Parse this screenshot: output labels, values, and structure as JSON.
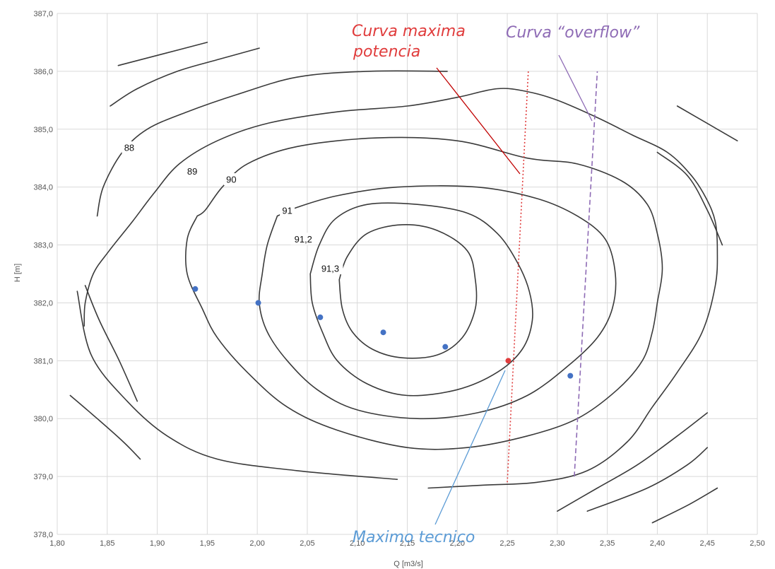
{
  "chart_data": {
    "type": "contour",
    "xlabel": "Q [m3/s]",
    "ylabel": "H [m]",
    "xlim": [
      1.8,
      2.5
    ],
    "ylim": [
      378.0,
      387.0
    ],
    "x_ticks": [
      "1,80",
      "1,85",
      "1,90",
      "1,95",
      "2,00",
      "2,05",
      "2,10",
      "2,15",
      "2,20",
      "2,25",
      "2,30",
      "2,35",
      "2,40",
      "2,45",
      "2,50"
    ],
    "y_ticks": [
      "378,0",
      "379,0",
      "380,0",
      "381,0",
      "382,0",
      "383,0",
      "384,0",
      "385,0",
      "386,0",
      "387,0"
    ],
    "grid": true,
    "contour_labels": [
      {
        "text": "88",
        "x": 1.872,
        "y": 384.68
      },
      {
        "text": "89",
        "x": 1.935,
        "y": 384.27
      },
      {
        "text": "90",
        "x": 1.974,
        "y": 384.13
      },
      {
        "text": "91",
        "x": 2.03,
        "y": 383.59
      },
      {
        "text": "91,2",
        "x": 2.046,
        "y": 383.1
      },
      {
        "text": "91,3",
        "x": 2.073,
        "y": 382.59
      }
    ],
    "operating_points": [
      {
        "x": 1.938,
        "y": 382.24,
        "color": "#4472c4"
      },
      {
        "x": 2.001,
        "y": 382.0,
        "color": "#4472c4"
      },
      {
        "x": 2.063,
        "y": 381.75,
        "color": "#4472c4"
      },
      {
        "x": 2.126,
        "y": 381.49,
        "color": "#4472c4"
      },
      {
        "x": 2.188,
        "y": 381.24,
        "color": "#4472c4"
      },
      {
        "x": 2.251,
        "y": 381.0,
        "color": "#e03c3c"
      },
      {
        "x": 2.313,
        "y": 380.74,
        "color": "#4472c4"
      }
    ],
    "reference_lines": [
      {
        "name": "Curva maxima potencia",
        "color": "#e03c3c",
        "dash": "dotted",
        "points": [
          [
            2.25,
            378.9
          ],
          [
            2.271,
            386.0
          ]
        ]
      },
      {
        "name": "Curva “overflow”",
        "color": "#8e6bb5",
        "dash": "dashed",
        "points": [
          [
            2.317,
            379.0
          ],
          [
            2.34,
            386.0
          ]
        ]
      }
    ],
    "contours": [
      {
        "level": "88",
        "points": [
          [
            1.84,
            383.5
          ],
          [
            1.846,
            384.0
          ],
          [
            1.865,
            384.6
          ],
          [
            1.89,
            385.0
          ],
          [
            1.93,
            385.3
          ],
          [
            1.98,
            385.6
          ],
          [
            2.04,
            385.9
          ],
          [
            2.11,
            386.0
          ],
          [
            2.19,
            386.0
          ]
        ]
      },
      {
        "level": "89",
        "points": [
          [
            1.82,
            382.2
          ],
          [
            1.834,
            381.1
          ],
          [
            1.87,
            380.3
          ],
          [
            1.91,
            379.7
          ],
          [
            1.96,
            379.3
          ],
          [
            2.04,
            379.1
          ],
          [
            2.14,
            378.95
          ]
        ]
      },
      {
        "level": "89-upper",
        "points": [
          [
            1.828,
            382.3
          ],
          [
            1.842,
            381.7
          ],
          [
            1.862,
            381.0
          ],
          [
            1.88,
            380.3
          ]
        ]
      },
      {
        "level": "89",
        "points": [
          [
            2.171,
            378.8
          ],
          [
            2.225,
            378.85
          ],
          [
            2.28,
            378.9
          ],
          [
            2.33,
            379.1
          ],
          [
            2.37,
            379.6
          ],
          [
            2.395,
            380.2
          ],
          [
            2.42,
            380.8
          ],
          [
            2.445,
            381.5
          ],
          [
            2.458,
            382.3
          ],
          [
            2.46,
            382.9
          ],
          [
            2.458,
            383.4
          ],
          [
            2.449,
            383.8
          ],
          [
            2.434,
            384.2
          ],
          [
            2.41,
            384.6
          ],
          [
            2.375,
            384.9
          ],
          [
            2.34,
            385.2
          ],
          [
            2.3,
            385.5
          ],
          [
            2.27,
            385.65
          ],
          [
            2.24,
            385.7
          ],
          [
            2.2,
            385.55
          ],
          [
            2.15,
            385.4
          ],
          [
            2.08,
            385.3
          ],
          [
            2.01,
            385.1
          ],
          [
            1.96,
            384.8
          ],
          [
            1.922,
            384.4
          ],
          [
            1.897,
            383.9
          ],
          [
            1.875,
            383.4
          ],
          [
            1.852,
            382.9
          ],
          [
            1.836,
            382.5
          ],
          [
            1.828,
            382.0
          ],
          [
            1.827,
            381.6
          ]
        ]
      },
      {
        "level": "90",
        "points": [
          [
            1.94,
            383.5
          ],
          [
            1.93,
            383.1
          ],
          [
            1.93,
            382.5
          ],
          [
            1.945,
            381.9
          ],
          [
            1.96,
            381.4
          ],
          [
            1.99,
            380.8
          ],
          [
            2.03,
            380.2
          ],
          [
            2.08,
            379.8
          ],
          [
            2.15,
            379.5
          ],
          [
            2.21,
            379.5
          ],
          [
            2.27,
            379.7
          ],
          [
            2.32,
            380.0
          ],
          [
            2.36,
            380.5
          ],
          [
            2.385,
            381.0
          ],
          [
            2.395,
            381.5
          ],
          [
            2.4,
            382.0
          ],
          [
            2.405,
            382.6
          ],
          [
            2.4,
            383.2
          ],
          [
            2.39,
            383.7
          ],
          [
            2.365,
            384.1
          ],
          [
            2.32,
            384.4
          ],
          [
            2.27,
            384.5
          ],
          [
            2.2,
            384.8
          ],
          [
            2.12,
            384.85
          ],
          [
            2.04,
            384.7
          ],
          [
            1.99,
            384.4
          ],
          [
            1.965,
            384.0
          ],
          [
            1.948,
            383.6
          ],
          [
            1.94,
            383.5
          ]
        ]
      },
      {
        "level": "91",
        "points": [
          [
            2.02,
            383.5
          ],
          [
            2.01,
            383.0
          ],
          [
            2.005,
            382.5
          ],
          [
            2.002,
            382.0
          ],
          [
            2.01,
            381.5
          ],
          [
            2.03,
            381.0
          ],
          [
            2.06,
            380.5
          ],
          [
            2.1,
            380.15
          ],
          [
            2.16,
            380.0
          ],
          [
            2.22,
            380.1
          ],
          [
            2.27,
            380.4
          ],
          [
            2.31,
            380.9
          ],
          [
            2.34,
            381.4
          ],
          [
            2.355,
            381.9
          ],
          [
            2.358,
            382.5
          ],
          [
            2.348,
            383.1
          ],
          [
            2.32,
            383.5
          ],
          [
            2.28,
            383.8
          ],
          [
            2.22,
            384.0
          ],
          [
            2.14,
            384.0
          ],
          [
            2.08,
            383.85
          ],
          [
            2.04,
            383.65
          ],
          [
            2.02,
            383.5
          ]
        ]
      },
      {
        "level": "91,2",
        "points": [
          [
            2.053,
            382.5
          ],
          [
            2.055,
            382.0
          ],
          [
            2.065,
            381.5
          ],
          [
            2.08,
            381.0
          ],
          [
            2.11,
            380.6
          ],
          [
            2.15,
            380.4
          ],
          [
            2.2,
            380.5
          ],
          [
            2.24,
            380.8
          ],
          [
            2.265,
            381.2
          ],
          [
            2.275,
            381.7
          ],
          [
            2.272,
            382.2
          ],
          [
            2.26,
            382.7
          ],
          [
            2.24,
            383.2
          ],
          [
            2.21,
            383.55
          ],
          [
            2.16,
            383.7
          ],
          [
            2.11,
            383.7
          ],
          [
            2.078,
            383.45
          ],
          [
            2.062,
            383.0
          ],
          [
            2.053,
            382.5
          ]
        ]
      },
      {
        "level": "91,3",
        "points": [
          [
            2.082,
            382.4
          ],
          [
            2.085,
            381.9
          ],
          [
            2.095,
            381.5
          ],
          [
            2.115,
            381.2
          ],
          [
            2.145,
            381.05
          ],
          [
            2.18,
            381.1
          ],
          [
            2.205,
            381.4
          ],
          [
            2.218,
            381.9
          ],
          [
            2.218,
            382.4
          ],
          [
            2.21,
            382.9
          ],
          [
            2.18,
            383.25
          ],
          [
            2.145,
            383.35
          ],
          [
            2.11,
            383.2
          ],
          [
            2.09,
            382.8
          ],
          [
            2.082,
            382.4
          ]
        ]
      },
      {
        "level": "88",
        "points": [
          [
            1.861,
            386.1
          ],
          [
            1.95,
            386.5
          ]
        ]
      },
      {
        "level": "88",
        "points": [
          [
            1.853,
            385.4
          ],
          [
            1.88,
            385.7
          ],
          [
            1.92,
            386.0
          ],
          [
            1.96,
            386.2
          ],
          [
            2.002,
            386.4
          ]
        ]
      },
      {
        "level": "88",
        "points": [
          [
            2.42,
            385.4
          ],
          [
            2.45,
            385.1
          ],
          [
            2.48,
            384.8
          ]
        ]
      },
      {
        "level": "88",
        "points": [
          [
            2.4,
            384.6
          ],
          [
            2.43,
            384.2
          ],
          [
            2.45,
            383.6
          ],
          [
            2.465,
            383.0
          ]
        ]
      },
      {
        "level": "88",
        "points": [
          [
            1.813,
            380.4
          ],
          [
            1.84,
            380.0
          ],
          [
            1.866,
            379.6
          ],
          [
            1.883,
            379.3
          ]
        ]
      },
      {
        "level": "88",
        "points": [
          [
            2.3,
            378.4
          ],
          [
            2.34,
            378.8
          ],
          [
            2.38,
            379.2
          ],
          [
            2.42,
            379.7
          ],
          [
            2.45,
            380.1
          ]
        ]
      },
      {
        "level": "88",
        "points": [
          [
            2.33,
            378.4
          ],
          [
            2.39,
            378.8
          ],
          [
            2.43,
            379.2
          ],
          [
            2.45,
            379.5
          ]
        ]
      },
      {
        "level": "88",
        "points": [
          [
            2.395,
            378.2
          ],
          [
            2.43,
            378.5
          ],
          [
            2.46,
            378.8
          ]
        ]
      }
    ]
  },
  "annotations": [
    {
      "key": "max_power_1",
      "text": "Curva maxima",
      "color": "#e03c3c"
    },
    {
      "key": "max_power_2",
      "text": "potencia",
      "color": "#e03c3c"
    },
    {
      "key": "overflow",
      "text": "Curva “overflow”",
      "color": "#8e6bb5"
    },
    {
      "key": "technical_max",
      "text": "Maximo tecnico",
      "color": "#5b9bd5"
    }
  ]
}
